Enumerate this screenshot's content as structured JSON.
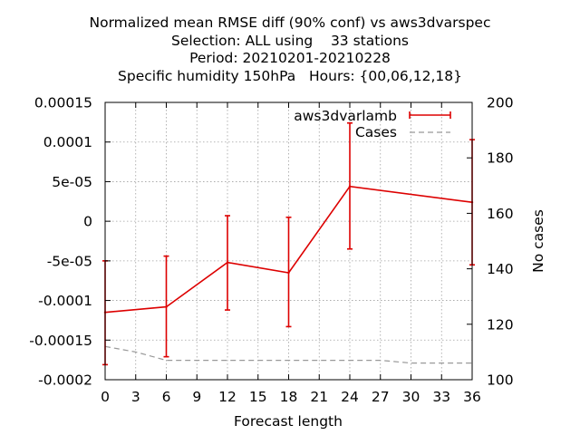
{
  "chart_data": {
    "type": "line",
    "title_lines": [
      "Normalized mean RMSE diff (90% conf) vs aws3dvarspec",
      "Selection: ALL using    33 stations",
      "Period: 20210201-20210228",
      "Specific humidity 150hPa   Hours: {00,06,12,18}"
    ],
    "xlabel": "Forecast length",
    "ylabel": "",
    "y2label": "No cases",
    "xlim": [
      0,
      36
    ],
    "ylim": [
      -0.0002,
      0.00015
    ],
    "y2lim": [
      100,
      200
    ],
    "x_ticks": [
      "0",
      "3",
      "6",
      "9",
      "12",
      "15",
      "18",
      "21",
      "24",
      "27",
      "30",
      "33",
      "36"
    ],
    "y_ticks": [
      "0.00015",
      "0.0001",
      "5e-05",
      "0",
      "-5e-05",
      "-0.0001",
      "-0.00015",
      "-0.0002"
    ],
    "y_tick_values": [
      0.00015,
      0.0001,
      5e-05,
      0,
      -5e-05,
      -0.0001,
      -0.00015,
      -0.0002
    ],
    "y2_ticks": [
      "200",
      "180",
      "160",
      "140",
      "120",
      "100"
    ],
    "y2_tick_values": [
      200,
      180,
      160,
      140,
      120,
      100
    ],
    "grid": true,
    "legend_position": "top-right",
    "series": [
      {
        "name": "aws3dvarlamb",
        "color": "#dd0000",
        "axis": "left",
        "style": "line-errorbars",
        "x": [
          0,
          6,
          12,
          18,
          24,
          36
        ],
        "y": [
          -0.000115,
          -0.000108,
          -5.2e-05,
          -6.5e-05,
          4.4e-05,
          2.4e-05
        ],
        "y_low": [
          -0.000181,
          -0.000171,
          -0.000112,
          -0.000133,
          -3.5e-05,
          -5.5e-05
        ],
        "y_high": [
          -5e-05,
          -4.4e-05,
          7e-06,
          5e-06,
          0.000124,
          0.000103
        ]
      },
      {
        "name": "Cases",
        "color": "#999999",
        "axis": "right",
        "style": "dashed",
        "x": [
          0,
          3,
          6,
          9,
          12,
          15,
          18,
          21,
          24,
          27,
          30,
          33,
          36
        ],
        "y": [
          112,
          110,
          107,
          107,
          107,
          107,
          107,
          107,
          107,
          107,
          106,
          106,
          106
        ]
      }
    ]
  }
}
